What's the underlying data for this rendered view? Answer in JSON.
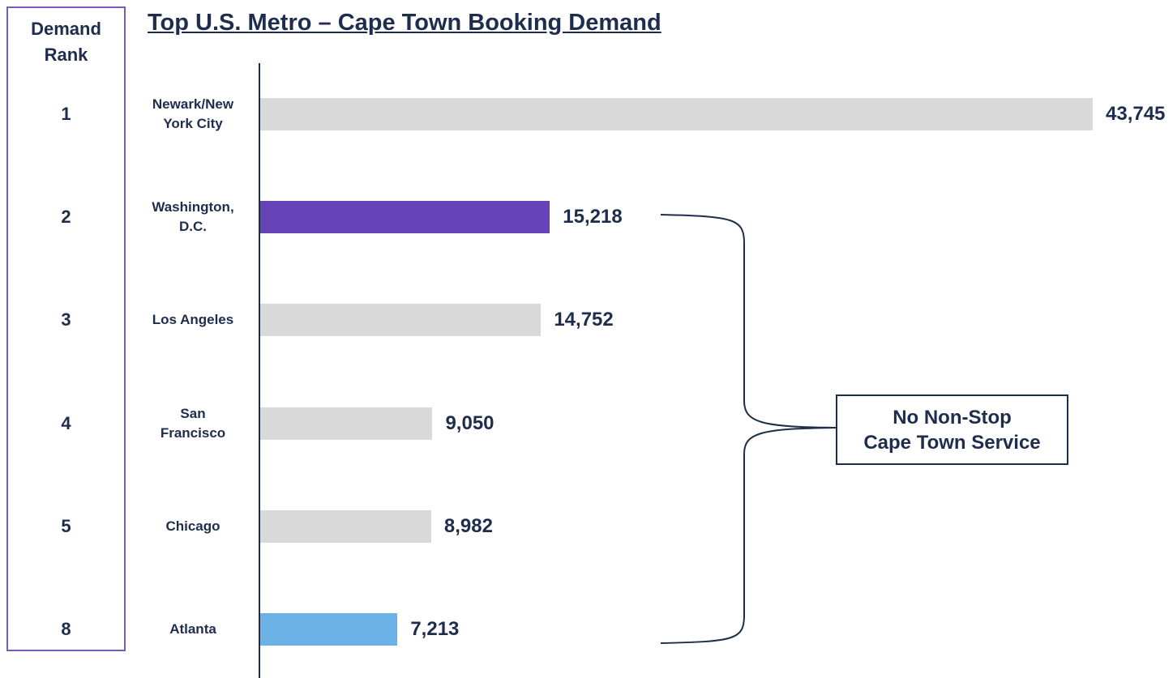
{
  "chart_data": {
    "type": "bar",
    "orientation": "horizontal",
    "title": "Top U.S. Metro – Cape Town Booking Demand",
    "rank_header": "Demand Rank",
    "ranks": [
      1,
      2,
      3,
      4,
      5,
      8
    ],
    "categories": [
      "Newark/New York City",
      "Washington, D.C.",
      "Los Angeles",
      "San Francisco",
      "Chicago",
      "Atlanta"
    ],
    "values": [
      43745,
      15218,
      14752,
      9050,
      8982,
      7213
    ],
    "value_labels": [
      "43,745",
      "15,218",
      "14,752",
      "9,050",
      "8,982",
      "7,213"
    ],
    "colors": [
      "#d9d9d9",
      "#6644b8",
      "#d9d9d9",
      "#d9d9d9",
      "#d9d9d9",
      "#6bb3e6"
    ],
    "annotation": [
      "No Non-Stop",
      "Cape Town Service"
    ]
  }
}
